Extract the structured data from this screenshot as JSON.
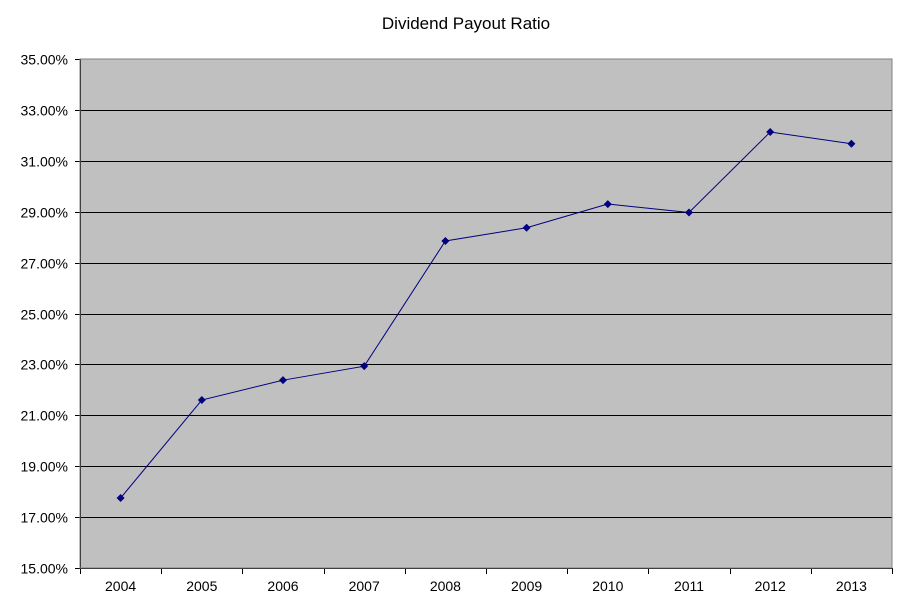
{
  "chart_data": {
    "type": "line",
    "title": "Dividend Payout Ratio",
    "xlabel": "",
    "ylabel": "",
    "categories": [
      "2004",
      "2005",
      "2006",
      "2007",
      "2008",
      "2009",
      "2010",
      "2011",
      "2012",
      "2013"
    ],
    "series": [
      {
        "name": "Dividend Payout Ratio",
        "values": [
          17.75,
          21.6,
          22.38,
          22.93,
          27.85,
          28.37,
          29.3,
          28.97,
          32.13,
          31.67
        ],
        "color": "#000080"
      }
    ],
    "ylim": [
      15,
      35
    ],
    "yticks": [
      15,
      17,
      19,
      21,
      23,
      25,
      27,
      29,
      31,
      33,
      35
    ],
    "ytick_labels": [
      "15.00%",
      "17.00%",
      "19.00%",
      "21.00%",
      "23.00%",
      "25.00%",
      "27.00%",
      "29.00%",
      "31.00%",
      "33.00%",
      "35.00%"
    ],
    "grid": true,
    "legend": "none",
    "plot_background": "#c0c0c0",
    "gridline_color": "#000000"
  }
}
